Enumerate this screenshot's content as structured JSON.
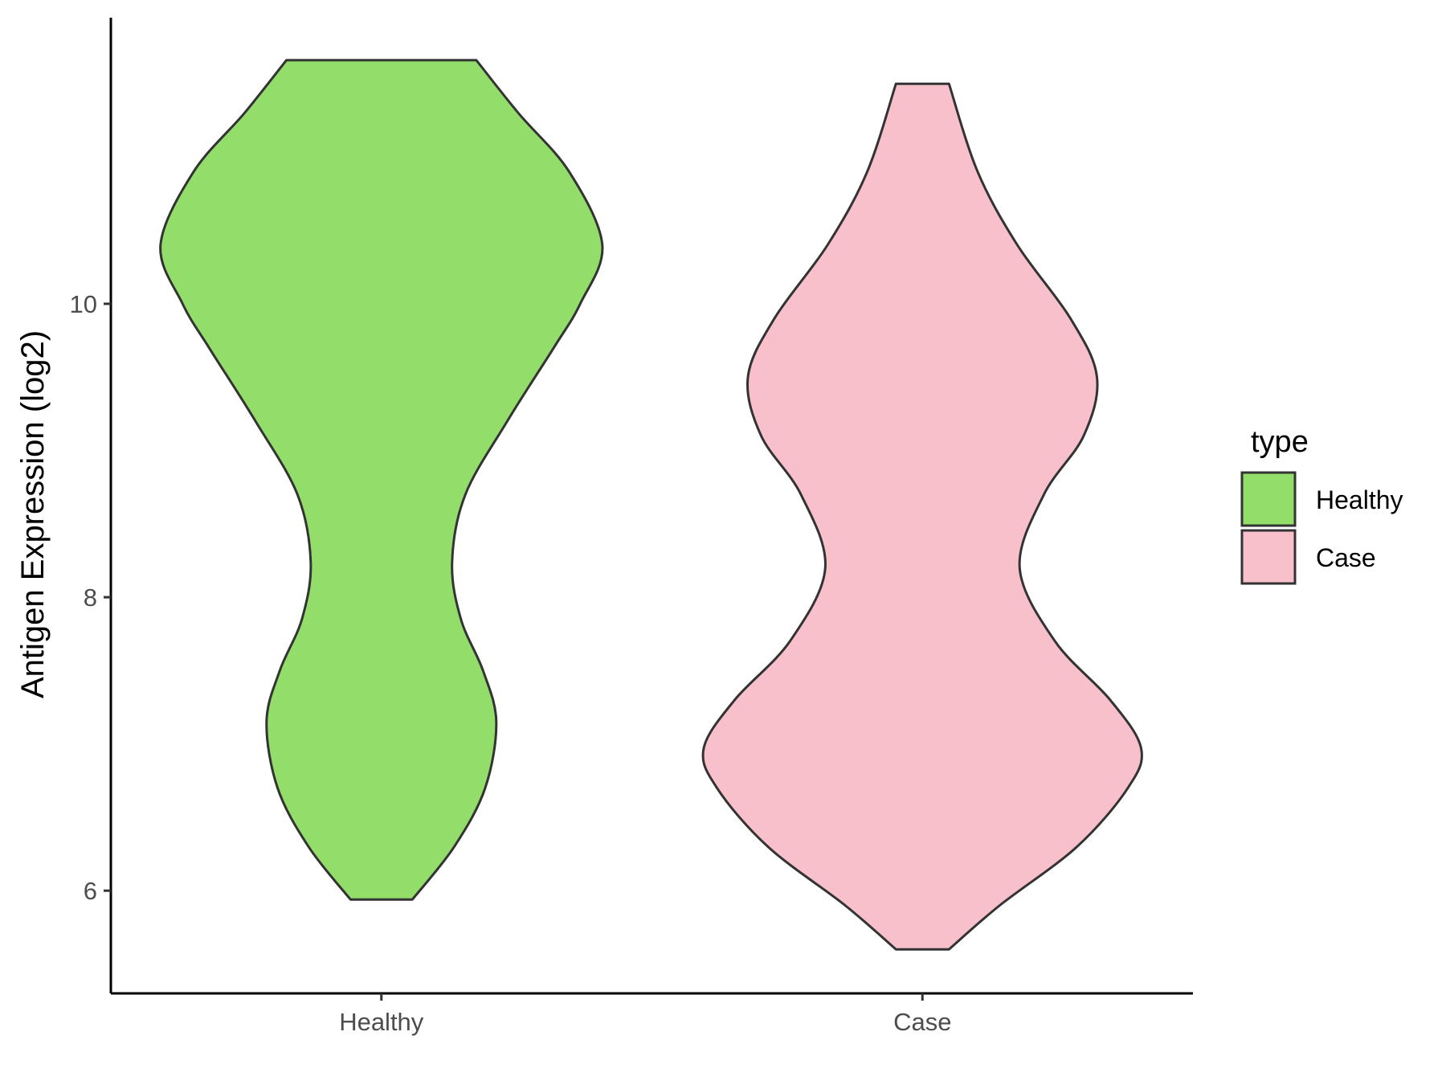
{
  "chart_data": {
    "type": "violin",
    "categories": [
      "Healthy",
      "Case"
    ],
    "ylabel": "Antigen Expression (log2)",
    "xlabel": "",
    "ylim": [
      5.3,
      11.95
    ],
    "yticks": [
      6,
      8,
      10
    ],
    "grid": false,
    "legend": {
      "title": "type",
      "position": "right",
      "items": [
        {
          "label": "Healthy",
          "color": "#93DD6A"
        },
        {
          "label": "Case",
          "color": "#F7C0CB"
        }
      ]
    },
    "series": [
      {
        "name": "Healthy",
        "color": "#93DD6A",
        "min": 5.94,
        "max": 11.66,
        "density_profile": [
          {
            "y": 5.94,
            "w": 0.14
          },
          {
            "y": 6.3,
            "w": 0.33
          },
          {
            "y": 6.7,
            "w": 0.47
          },
          {
            "y": 7.15,
            "w": 0.52
          },
          {
            "y": 7.5,
            "w": 0.46
          },
          {
            "y": 7.85,
            "w": 0.36
          },
          {
            "y": 8.24,
            "w": 0.32
          },
          {
            "y": 8.7,
            "w": 0.38
          },
          {
            "y": 9.2,
            "w": 0.57
          },
          {
            "y": 9.7,
            "w": 0.78
          },
          {
            "y": 10.0,
            "w": 0.9
          },
          {
            "y": 10.4,
            "w": 1.0
          },
          {
            "y": 10.9,
            "w": 0.85
          },
          {
            "y": 11.3,
            "w": 0.62
          },
          {
            "y": 11.66,
            "w": 0.43
          }
        ]
      },
      {
        "name": "Case",
        "color": "#F7C0CB",
        "min": 5.6,
        "max": 11.5,
        "density_profile": [
          {
            "y": 5.6,
            "w": 0.12
          },
          {
            "y": 5.9,
            "w": 0.35
          },
          {
            "y": 6.3,
            "w": 0.7
          },
          {
            "y": 6.7,
            "w": 0.93
          },
          {
            "y": 6.97,
            "w": 0.99
          },
          {
            "y": 7.3,
            "w": 0.85
          },
          {
            "y": 7.7,
            "w": 0.6
          },
          {
            "y": 8.2,
            "w": 0.44
          },
          {
            "y": 8.7,
            "w": 0.55
          },
          {
            "y": 9.1,
            "w": 0.73
          },
          {
            "y": 9.5,
            "w": 0.79
          },
          {
            "y": 9.9,
            "w": 0.67
          },
          {
            "y": 10.4,
            "w": 0.43
          },
          {
            "y": 10.9,
            "w": 0.25
          },
          {
            "y": 11.5,
            "w": 0.12
          }
        ]
      }
    ]
  }
}
